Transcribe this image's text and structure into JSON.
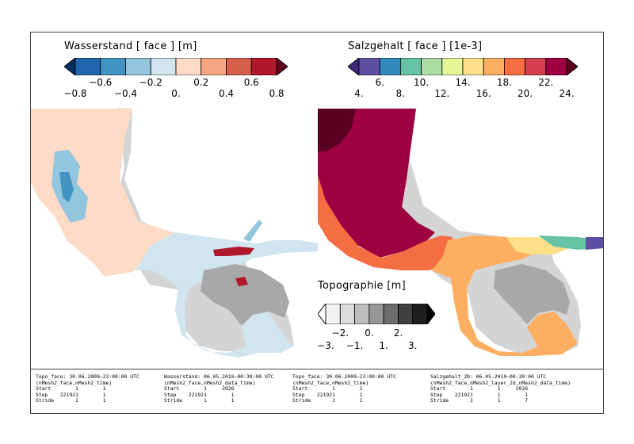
{
  "water_colorbar": {
    "title": "Wasserstand [ face ] [m]",
    "colors": [
      "#2166ac",
      "#4393c3",
      "#92c5de",
      "#d1e5f0",
      "#fddbc7",
      "#f4a582",
      "#d6604d",
      "#b2182b"
    ],
    "end_low": "#053061",
    "end_high": "#67001f",
    "upper_ticks": [
      "−0.6",
      "−0.2",
      "0.2",
      "0.6"
    ],
    "lower_ticks": [
      "−0.8",
      "−0.4",
      "0.",
      "0.4",
      "0.8"
    ]
  },
  "salt_colorbar": {
    "title": "Salzgehalt [ face ] [1e-3]",
    "colors": [
      "#5e4fa2",
      "#3288bd",
      "#66c2a5",
      "#abdda4",
      "#e6f598",
      "#fee08b",
      "#fdae61",
      "#f46d43",
      "#d53e4f",
      "#9e0142"
    ],
    "end_low": "#3b2b7a",
    "end_high": "#5a0020",
    "upper_ticks": [
      "6.",
      "10.",
      "14.",
      "18.",
      "22."
    ],
    "lower_ticks": [
      "4.",
      "8.",
      "12.",
      "16.",
      "20.",
      "24."
    ]
  },
  "topo_colorbar": {
    "title": "Topographie [m]",
    "colors": [
      "#f2f2f2",
      "#dcdcdc",
      "#bdbdbd",
      "#969696",
      "#6e6e6e",
      "#3f3f3f",
      "#1e1e1e"
    ],
    "end_low": "#ffffff",
    "end_high": "#000000",
    "upper_ticks": [
      "−2.",
      "0.",
      "2."
    ],
    "lower_ticks": [
      "−3.",
      "−1.",
      "1.",
      "3."
    ]
  },
  "map_colors": {
    "topo_light": "#d4d4d4",
    "topo_mid": "#a8a8a8",
    "topo_dark": "#7a7a7a",
    "water_main": "#fddbc7",
    "water_lower": "#d1e5f0",
    "water_channel": "#92c5de",
    "water_deep": "#4393c3",
    "water_high": "#b2182b",
    "salt_low": "#9e0142",
    "salt_vlow": "#5a0020",
    "salt_mid": "#f46d43",
    "salt_high": "#fdae61",
    "salt_vhigh": "#fee08b",
    "salt_sea": "#66c2a5",
    "salt_max": "#5e4fa2"
  },
  "footer": {
    "block1": "Topo_face: 30.06.2009–23:00:00 UTC\n(nMesh2_face,nMesh2_time)\nStart        1        1\nStep    221921        1\nStride       1        1",
    "block2": "Wasserstand: 06.05.2010–00:30:00 UTC\n(nMesh2_face,nMesh2_data_time)\nStart        1     2026\nStep    221921        1\nStride       1        1",
    "block3": "Topo_face: 30.06.2009–23:00:00 UTC\n(nMesh2_face,nMesh2_time)\nStart        1        1\nStep    221921        1\nStride       1        1",
    "block4": "Salzgehalt_2D: 06.05.2010–00:30:00 UTC\n(nMesh2_face,nMesh2_layer_2d,nMesh2_data_time)\nStart        1        1     2026\nStep    221921        1        1\nStride       1        1        7"
  }
}
